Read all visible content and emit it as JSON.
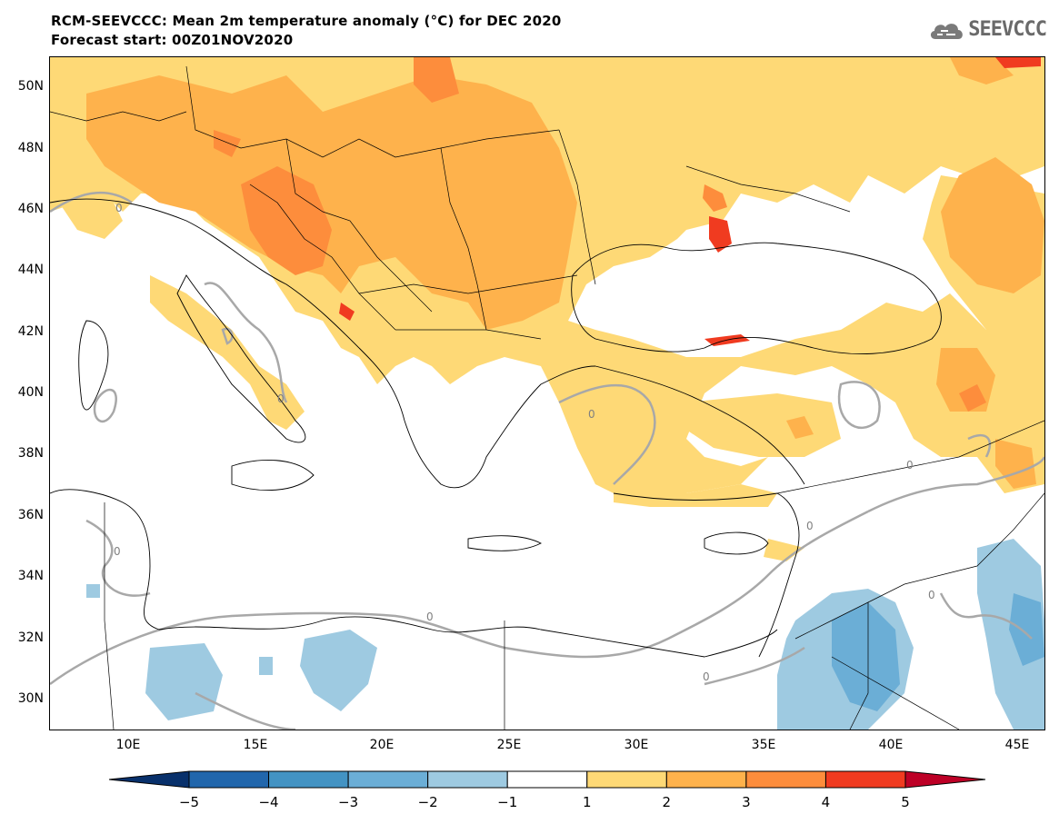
{
  "title_line1": "RCM-SEEVCCC: Mean 2m temperature anomaly (°C) for DEC 2020",
  "title_line2": "Forecast start: 00Z01NOV2020",
  "logo_text": "SEEVCCC",
  "lat_labels": [
    "50N",
    "48N",
    "46N",
    "44N",
    "42N",
    "40N",
    "38N",
    "36N",
    "34N",
    "32N",
    "30N"
  ],
  "lon_labels": [
    "10E",
    "15E",
    "20E",
    "25E",
    "30E",
    "35E",
    "40E",
    "45E"
  ],
  "contour_label": "0",
  "colorbar": {
    "labels": [
      "−5",
      "−4",
      "−3",
      "−2",
      "−1",
      "1",
      "2",
      "3",
      "4",
      "5"
    ],
    "colors": [
      "#08306b",
      "#2166ac",
      "#4393c3",
      "#6baed6",
      "#9ecae1",
      "#ffffff",
      "#fed976",
      "#feb24c",
      "#fd8d3c",
      "#f03b20",
      "#bd0026"
    ]
  }
}
